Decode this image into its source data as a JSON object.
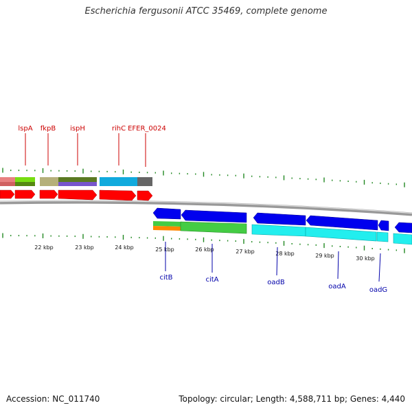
{
  "title": "Escherichia fergusonii ATCC 35469, complete genome",
  "footer": {
    "accession": "Accession: NC_011740",
    "summary": "Topology: circular; Length: 4,588,711 bp; Genes: 4,440"
  },
  "scale": {
    "ticks": [
      {
        "label": "22 kbp"
      },
      {
        "label": "23 kbp"
      },
      {
        "label": "24 kbp"
      },
      {
        "label": "25 kbp"
      },
      {
        "label": "26 kbp"
      },
      {
        "label": "27 kbp"
      },
      {
        "label": "28 kbp"
      },
      {
        "label": "29 kbp"
      },
      {
        "label": "30 kbp"
      }
    ]
  },
  "genes": {
    "forward": [
      {
        "name": "lspA",
        "color": "#cc0000"
      },
      {
        "name": "fkpB",
        "color": "#cc0000"
      },
      {
        "name": "ispH",
        "color": "#cc0000"
      },
      {
        "name": "rihC",
        "color": "#cc0000"
      },
      {
        "name": "EFER_0024",
        "color": "#cc0000"
      }
    ],
    "reverse": [
      {
        "name": "citB",
        "color": "#0000aa"
      },
      {
        "name": "citA",
        "color": "#0000aa"
      },
      {
        "name": "oadB",
        "color": "#0000aa"
      },
      {
        "name": "oadA",
        "color": "#0000aa"
      },
      {
        "name": "oadG",
        "color": "#0000aa"
      }
    ]
  },
  "colors": {
    "forward_cds": "#ff0000",
    "reverse_cds": "#0000ee",
    "backbone": "#888888",
    "tick": "#228822"
  }
}
